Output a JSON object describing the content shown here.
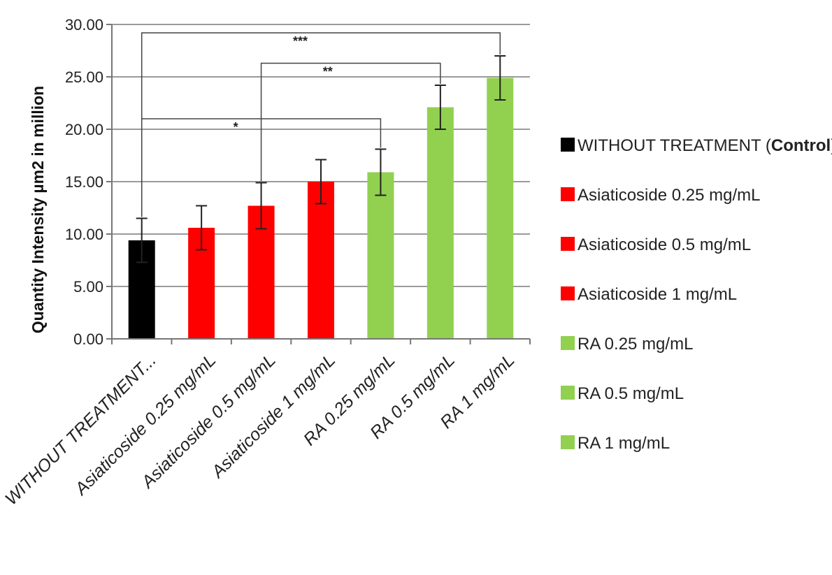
{
  "chart_data": {
    "type": "bar",
    "ylabel": "Quantity Intensity µm2 in million",
    "ylim": [
      0,
      30
    ],
    "yticks": [
      "0.00",
      "5.00",
      "10.00",
      "15.00",
      "20.00",
      "25.00",
      "30.00"
    ],
    "ytick_values": [
      0,
      5,
      10,
      15,
      20,
      25,
      30
    ],
    "grid": true,
    "legend_position": "right",
    "categories": [
      "WITHOUT TREATMENT...",
      "Asiaticoside 0.25 mg/mL",
      "Asiaticoside 0.5 mg/mL",
      "Asiaticoside 1 mg/mL",
      "RA 0.25 mg/mL",
      "RA 0.5 mg/mL",
      "RA 1 mg/mL"
    ],
    "values": [
      9.4,
      10.6,
      12.7,
      15.0,
      15.9,
      22.1,
      24.9
    ],
    "errors": [
      2.1,
      2.1,
      2.2,
      2.1,
      2.2,
      2.1,
      2.1
    ],
    "colors": [
      "#000000",
      "#ff0000",
      "#ff0000",
      "#ff0000",
      "#92d050",
      "#92d050",
      "#92d050"
    ],
    "legend": [
      {
        "label": "WITHOUT TREATMENT (",
        "bold": "Control",
        "suffix": ")",
        "color": "#000000"
      },
      {
        "label": "Asiaticoside 0.25 mg/mL",
        "bold": "",
        "suffix": "",
        "color": "#ff0000"
      },
      {
        "label": "Asiaticoside 0.5 mg/mL",
        "bold": "",
        "suffix": "",
        "color": "#ff0000"
      },
      {
        "label": "Asiaticoside 1 mg/mL",
        "bold": "",
        "suffix": "",
        "color": "#ff0000"
      },
      {
        "label": "RA 0.25 mg/mL",
        "bold": "",
        "suffix": "",
        "color": "#92d050"
      },
      {
        "label": "RA 0.5 mg/mL",
        "bold": "",
        "suffix": "",
        "color": "#92d050"
      },
      {
        "label": "RA 1 mg/mL",
        "bold": "",
        "suffix": "",
        "color": "#92d050"
      }
    ],
    "significance": [
      {
        "from": 0,
        "to": 6,
        "label": "***",
        "level": 29.2
      },
      {
        "from": 2,
        "to": 5,
        "label": "**",
        "level": 26.3
      },
      {
        "from": 0,
        "to": 4,
        "label": "*",
        "level": 21.0
      }
    ]
  }
}
